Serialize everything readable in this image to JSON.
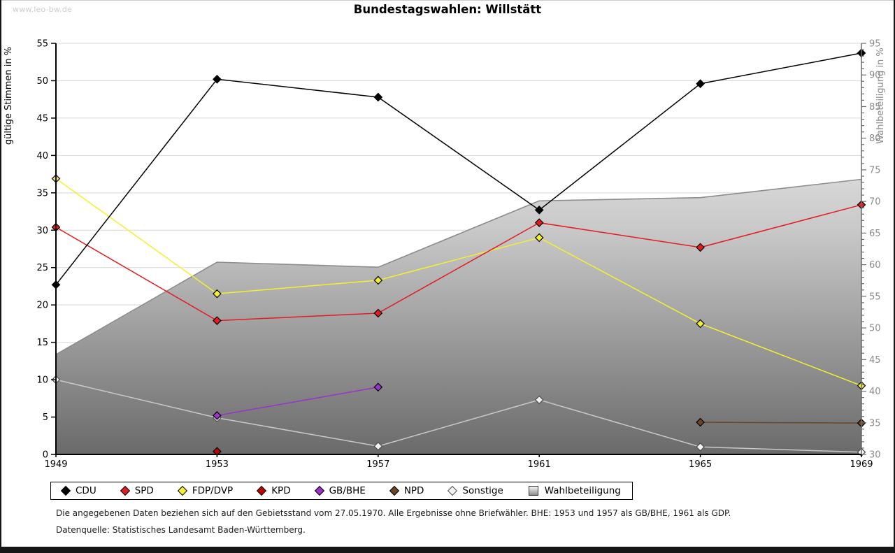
{
  "watermark": "www.leo-bw.de",
  "title": "Bundestagswahlen: Willstätt",
  "chart_data": {
    "type": "line",
    "x": [
      1949,
      1953,
      1957,
      1961,
      1965,
      1969
    ],
    "left_axis": {
      "label": "gültige Stimmen in %",
      "min": 0,
      "max": 55,
      "tick_step": 5
    },
    "right_axis": {
      "label": "Wahlbeteiligung in %",
      "min": 30,
      "max": 95,
      "tick_step": 5,
      "minor_tick_step": 1
    },
    "grid": true,
    "legend_position": "bottom",
    "series": [
      {
        "name": "CDU",
        "type": "line",
        "axis": "left",
        "color": "#000000",
        "values": [
          22.7,
          50.2,
          47.8,
          32.7,
          49.6,
          53.7
        ]
      },
      {
        "name": "SPD",
        "type": "line",
        "axis": "left",
        "color": "#e21c21",
        "values": [
          30.4,
          17.9,
          18.9,
          31.0,
          27.7,
          33.4
        ]
      },
      {
        "name": "FDP/DVP",
        "type": "line",
        "axis": "left",
        "color": "#f5f02e",
        "values": [
          36.9,
          21.5,
          23.3,
          29.0,
          17.5,
          9.2
        ]
      },
      {
        "name": "KPD",
        "type": "line",
        "axis": "left",
        "color": "#c00000",
        "values": [
          null,
          0.4,
          null,
          null,
          null,
          null
        ]
      },
      {
        "name": "GB/BHE",
        "type": "line",
        "axis": "left",
        "color": "#9933cc",
        "values": [
          null,
          5.2,
          9.0,
          null,
          null,
          null
        ]
      },
      {
        "name": "NPD",
        "type": "line",
        "axis": "left",
        "color": "#6e4523",
        "values": [
          null,
          null,
          null,
          null,
          4.3,
          4.2
        ]
      },
      {
        "name": "Sonstige",
        "type": "line",
        "axis": "left",
        "color": "#c9c9c9",
        "marker_fill": "#f2f2f2",
        "marker_stroke": "#4d4d4d",
        "values": [
          10.0,
          4.9,
          1.1,
          7.3,
          1.0,
          0.3
        ]
      },
      {
        "name": "Wahlbeteiligung",
        "type": "area",
        "axis": "right",
        "color": "#8c8c8c",
        "values": [
          45.8,
          60.4,
          59.6,
          70.1,
          70.6,
          73.5
        ]
      }
    ]
  },
  "footnotes": {
    "line1": "Die angegebenen Daten beziehen sich auf den Gebietsstand vom 27.05.1970. Alle Ergebnisse ohne Briefwähler. BHE: 1953 und 1957 als GB/BHE, 1961 als GDP.",
    "line2": "Datenquelle: Statistisches Landesamt Baden-Württemberg."
  }
}
